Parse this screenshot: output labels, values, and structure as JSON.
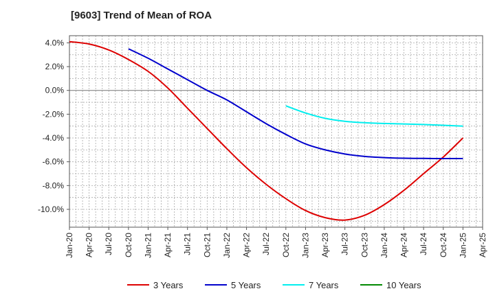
{
  "chart_data": {
    "type": "line",
    "title": "[9603]  Trend of Mean of ROA",
    "xlabel": "",
    "ylabel": "",
    "ylim": [
      -11.5,
      4.6
    ],
    "yticks": [
      4.0,
      2.0,
      0.0,
      -2.0,
      -4.0,
      -6.0,
      -8.0,
      -10.0
    ],
    "ytick_labels": [
      "4.0%",
      "2.0%",
      "0.0%",
      "-2.0%",
      "-4.0%",
      "-6.0%",
      "-8.0%",
      "-10.0%"
    ],
    "xticks": [
      "Jan-20",
      "Apr-20",
      "Jul-20",
      "Oct-20",
      "Jan-21",
      "Apr-21",
      "Jul-21",
      "Oct-21",
      "Jan-22",
      "Apr-22",
      "Jul-22",
      "Oct-22",
      "Jan-23",
      "Apr-23",
      "Jul-23",
      "Oct-23",
      "Jan-24",
      "Apr-24",
      "Jul-24",
      "Oct-24",
      "Jan-25",
      "Apr-25"
    ],
    "x_unit": "quarter index (0 = Jan-20)",
    "grid": true,
    "legend_position": "bottom",
    "series": [
      {
        "name": "3 Years",
        "color": "#dd0000",
        "x": [
          0,
          1,
          2,
          3,
          4,
          5,
          6,
          7,
          8,
          9,
          10,
          11,
          12,
          13,
          14,
          15,
          16,
          17,
          18,
          19,
          20
        ],
        "values": [
          4.1,
          3.9,
          3.4,
          2.6,
          1.6,
          0.2,
          -1.5,
          -3.2,
          -4.9,
          -6.5,
          -7.9,
          -9.1,
          -10.1,
          -10.7,
          -10.9,
          -10.5,
          -9.6,
          -8.4,
          -7.0,
          -5.6,
          -4.0
        ]
      },
      {
        "name": "5 Years",
        "color": "#0000cc",
        "x": [
          3,
          4,
          5,
          6,
          7,
          8,
          9,
          10,
          11,
          12,
          13,
          14,
          15,
          16,
          17,
          18,
          19,
          20
        ],
        "values": [
          3.5,
          2.7,
          1.8,
          0.9,
          0.0,
          -0.8,
          -1.8,
          -2.8,
          -3.7,
          -4.5,
          -5.0,
          -5.35,
          -5.55,
          -5.65,
          -5.7,
          -5.72,
          -5.73,
          -5.73
        ]
      },
      {
        "name": "7 Years",
        "color": "#00eeee",
        "x": [
          11,
          12,
          13,
          14,
          15,
          16,
          17,
          18,
          19,
          20
        ],
        "values": [
          -1.3,
          -1.9,
          -2.35,
          -2.6,
          -2.72,
          -2.78,
          -2.82,
          -2.87,
          -2.93,
          -3.0
        ]
      },
      {
        "name": "10 Years",
        "color": "#008800",
        "x": [],
        "values": []
      }
    ]
  }
}
